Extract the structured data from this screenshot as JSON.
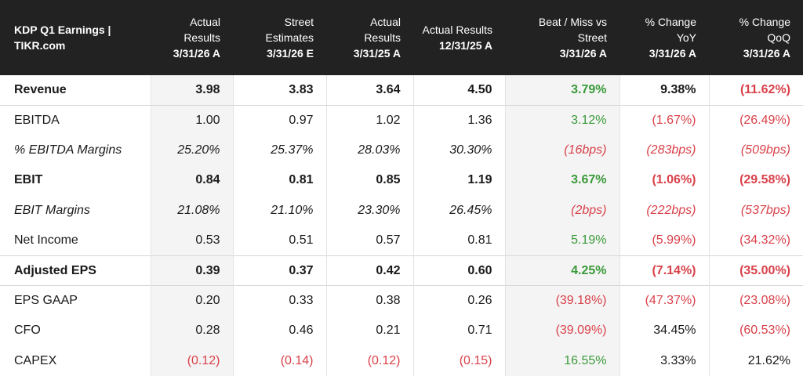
{
  "header": {
    "title": "KDP Q1 Earnings | TIKR.com",
    "columns": [
      {
        "label": "Actual Results",
        "date": "3/31/26 A"
      },
      {
        "label": "Street Estimates",
        "date": "3/31/26 E"
      },
      {
        "label": "Actual Results",
        "date": "3/31/25 A"
      },
      {
        "label": "Actual Results",
        "date": "12/31/25 A"
      },
      {
        "label": "Beat / Miss vs Street",
        "date": "3/31/26 A"
      },
      {
        "label": "% Change YoY",
        "date": "3/31/26 A"
      },
      {
        "label": "% Change QoQ",
        "date": "3/31/26 A"
      }
    ]
  },
  "rows": [
    {
      "label": "Revenue",
      "values": [
        "3.98",
        "3.83",
        "3.64",
        "4.50",
        "3.79%",
        "9.38%",
        "(11.62%)"
      ]
    },
    {
      "label": "EBITDA",
      "values": [
        "1.00",
        "0.97",
        "1.02",
        "1.36",
        "3.12%",
        "(1.67%)",
        "(26.49%)"
      ]
    },
    {
      "label": "% EBITDA Margins",
      "values": [
        "25.20%",
        "25.37%",
        "28.03%",
        "30.30%",
        "(16bps)",
        "(283bps)",
        "(509bps)"
      ]
    },
    {
      "label": "EBIT",
      "values": [
        "0.84",
        "0.81",
        "0.85",
        "1.19",
        "3.67%",
        "(1.06%)",
        "(29.58%)"
      ]
    },
    {
      "label": "EBIT Margins",
      "values": [
        "21.08%",
        "21.10%",
        "23.30%",
        "26.45%",
        "(2bps)",
        "(222bps)",
        "(537bps)"
      ]
    },
    {
      "label": "Net Income",
      "values": [
        "0.53",
        "0.51",
        "0.57",
        "0.81",
        "5.19%",
        "(5.99%)",
        "(34.32%)"
      ]
    },
    {
      "label": "Adjusted EPS",
      "values": [
        "0.39",
        "0.37",
        "0.42",
        "0.60",
        "4.25%",
        "(7.14%)",
        "(35.00%)"
      ]
    },
    {
      "label": "EPS GAAP",
      "values": [
        "0.20",
        "0.33",
        "0.38",
        "0.26",
        "(39.18%)",
        "(47.37%)",
        "(23.08%)"
      ]
    },
    {
      "label": "CFO",
      "values": [
        "0.28",
        "0.46",
        "0.21",
        "0.71",
        "(39.09%)",
        "34.45%",
        "(60.53%)"
      ]
    },
    {
      "label": "CAPEX",
      "values": [
        "(0.12)",
        "(0.14)",
        "(0.12)",
        "(0.15)",
        "16.55%",
        "3.33%",
        "21.62%"
      ]
    }
  ],
  "colors": {
    "header_bg": "#222222",
    "positive": "#3a9a3a",
    "negative": "#d9414a",
    "shaded_col": "#f4f4f4"
  }
}
